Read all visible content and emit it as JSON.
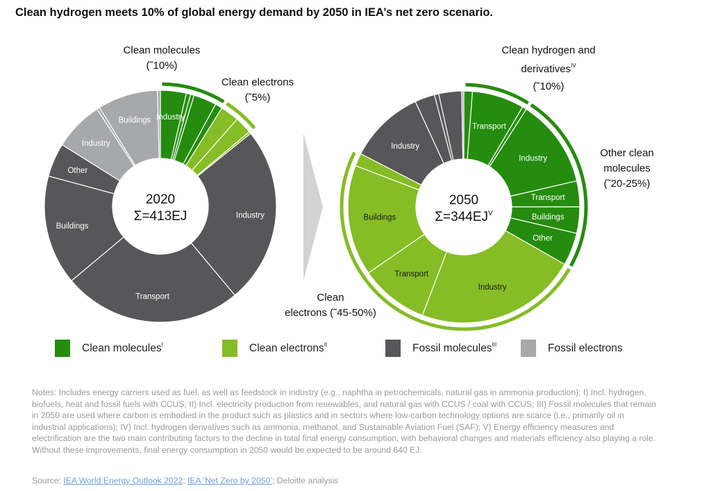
{
  "title": "Clean hydrogen meets 10% of global energy demand by 2050 in IEA’s net zero scenario.",
  "colors": {
    "clean_molecules": "#258c0f",
    "clean_electrons": "#86bc25",
    "fossil_molecules": "#575759",
    "fossil_electrons": "#a7a8aa",
    "arrow": "#d3d3d3"
  },
  "chart_data": [
    {
      "type": "pie",
      "variant": "donut",
      "year": "2020",
      "center_label_line1": "2020",
      "center_label_line2": "Σ=413EJ",
      "total_EJ": 413,
      "unit": "share of total final energy (%) , clockwise from top",
      "segments": [
        {
          "group": "Clean molecules",
          "label": "Industry",
          "value": 3.6
        },
        {
          "group": "Clean molecules",
          "label": "",
          "value": 0.6
        },
        {
          "group": "Clean molecules",
          "label": "",
          "value": 0.5
        },
        {
          "group": "Clean molecules",
          "label": "",
          "value": 3.2
        },
        {
          "group": "Clean molecules",
          "label": "",
          "value": 1.0
        },
        {
          "group": "Clean electrons",
          "label": "",
          "value": 2.6
        },
        {
          "group": "Clean electrons",
          "label": "",
          "value": 2.4
        },
        {
          "group": "Clean electrons",
          "label": "",
          "value": 0.3
        },
        {
          "group": "Fossil molecules",
          "label": "Industry",
          "value": 24.7
        },
        {
          "group": "Fossil molecules",
          "label": "Transport",
          "value": 25.0
        },
        {
          "group": "Fossil molecules",
          "label": "Buildings",
          "value": 15.3
        },
        {
          "group": "Fossil molecules",
          "label": "Other",
          "value": 4.7
        },
        {
          "group": "Fossil electrons",
          "label": "Industry",
          "value": 6.9
        },
        {
          "group": "Fossil electrons",
          "label": "",
          "value": 0.4
        },
        {
          "group": "Fossil electrons",
          "label": "Buildings",
          "value": 8.4
        },
        {
          "group": "Fossil electrons",
          "label": "",
          "value": 0.4
        }
      ],
      "brackets": [
        {
          "label_line1": "Clean molecules",
          "label_line2": "(˜10%)",
          "group": "Clean molecules",
          "share": "~10%"
        },
        {
          "label_line1": "Clean electrons",
          "label_line2": "(˜5%)",
          "group": "Clean electrons",
          "share": "~5%"
        }
      ]
    },
    {
      "type": "pie",
      "variant": "donut",
      "year": "2050",
      "center_label_line1": "2050",
      "center_label_line2": "Σ=344EJ",
      "center_label_sup": "V",
      "total_EJ": 344,
      "unit": "share of total final energy (%) , clockwise from top",
      "segments": [
        {
          "group": "Clean molecules",
          "subgroup": "Clean hydrogen and derivatives",
          "label": "",
          "value": 1.2
        },
        {
          "group": "Clean molecules",
          "subgroup": "Clean hydrogen and derivatives",
          "label": "Transport",
          "value": 7.3
        },
        {
          "group": "Clean molecules",
          "subgroup": "Clean hydrogen and derivatives",
          "label": "",
          "value": 0.6
        },
        {
          "group": "Clean molecules",
          "subgroup": "Other clean molecules",
          "label": "Industry",
          "value": 12.4
        },
        {
          "group": "Clean molecules",
          "subgroup": "Other clean molecules",
          "label": "Transport",
          "value": 3.6
        },
        {
          "group": "Clean molecules",
          "subgroup": "Other clean molecules",
          "label": "Buildings",
          "value": 3.7
        },
        {
          "group": "Clean molecules",
          "subgroup": "Other clean molecules",
          "label": "Other",
          "value": 4.6
        },
        {
          "group": "Clean electrons",
          "label": "Industry",
          "value": 22.7
        },
        {
          "group": "Clean electrons",
          "label": "Transport",
          "value": 9.6
        },
        {
          "group": "Clean electrons",
          "label": "Buildings",
          "value": 15.5
        },
        {
          "group": "Clean electrons",
          "label": "",
          "value": 1.8
        },
        {
          "group": "Fossil molecules",
          "label": "Industry",
          "value": 10.6
        },
        {
          "group": "Fossil molecules",
          "label": "",
          "value": 2.8
        },
        {
          "group": "Fossil molecules",
          "label": "",
          "value": 0.6
        },
        {
          "group": "Fossil molecules",
          "label": "",
          "value": 3.2
        },
        {
          "group": "Fossil electrons",
          "label": "",
          "value": 0.3
        }
      ],
      "brackets": [
        {
          "label_line1": "Clean hydrogen and",
          "label_line2": "derivatives",
          "label_sup": "IV",
          "label_line3": "(˜10%)",
          "subgroup": "Clean hydrogen and derivatives",
          "share": "~10%"
        },
        {
          "label_line1": "Other clean",
          "label_line2": "molecules",
          "label_line3": "(˜20-25%)",
          "subgroup": "Other clean molecules",
          "share": "~20-25%"
        },
        {
          "label_line1": "Clean",
          "label_line2": "electrons (˜45-50%)",
          "group": "Clean electrons",
          "share": "~45-50%"
        }
      ]
    }
  ],
  "legend": [
    {
      "label": "Clean molecules",
      "sup": "I",
      "color_key": "clean_molecules"
    },
    {
      "label": "Clean electrons",
      "sup": "II",
      "color_key": "clean_electrons"
    },
    {
      "label": "Fossil molecules",
      "sup": "III",
      "color_key": "fossil_molecules"
    },
    {
      "label": "Fossil electrons",
      "sup": "",
      "color_key": "fossil_electrons"
    }
  ],
  "notes": "Notes: Includes energy carriers used as fuel, as well as feedstock in industry (e.g., naphtha in petrochemicals, natural gas in ammonia production); I) Incl. hydrogen, biofuels, heat and fossil fuels with CCUS; II) Incl. electricity production from renewables, and natural gas with CCUS / coal with CCUS; III) Fossil molecules that remain in 2050 are used where carbon is embodied in the product such as plastics and in sectors where low-carbon technology options are scarce (i.e., primarily oil in industrial applications); IV) Incl. hydrogen derivatives such as ammonia, methanol, and Sustainable Aviation Fuel (SAF); V) Energy efficiency measures and electrification are the two main contributing factors to the decline in total final energy consumption, with behavioral changes and materials efficiency also playing a role. Without these improvements, final energy consumption in 2050 would be expected to be around 640 EJ.",
  "source": {
    "prefix": "Source: ",
    "link1": "IEA World Energy Outlook 2022",
    "sep": "; ",
    "link2": "IEA ‘Net Zero by 2050’",
    "suffix": "; Deloitte analysis"
  }
}
